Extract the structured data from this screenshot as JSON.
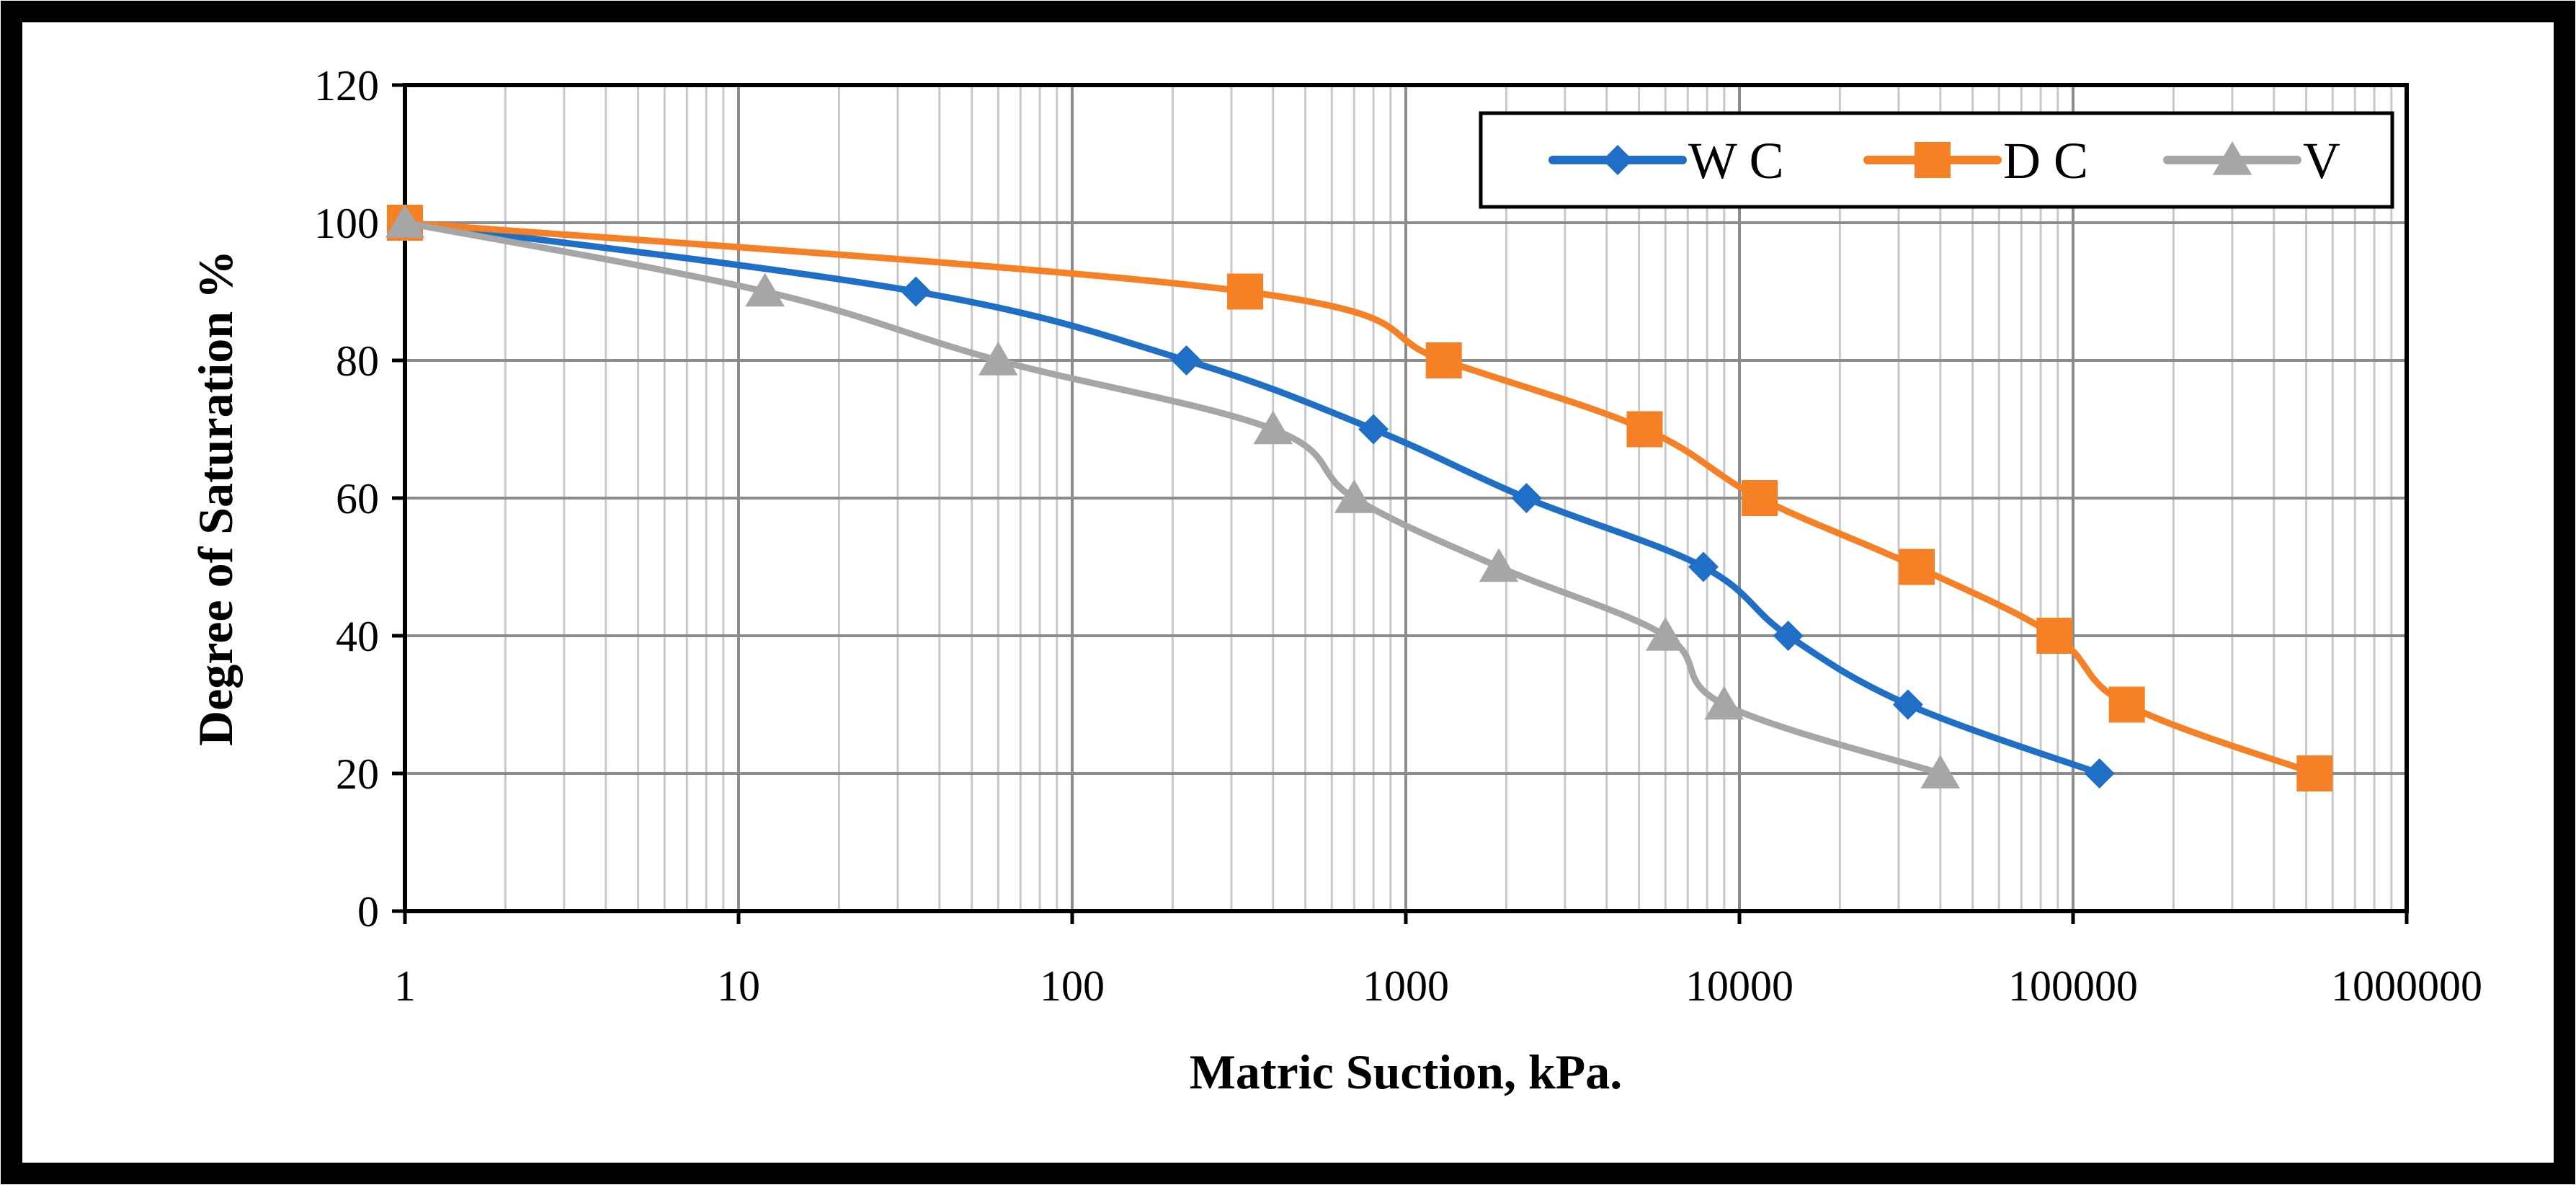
{
  "chart_data": {
    "type": "line",
    "x_scale": "log",
    "xlabel": "Matric Suction, kPa.",
    "ylabel": "Degree of Saturation %",
    "xlim": [
      1,
      1000000
    ],
    "ylim": [
      0,
      120
    ],
    "x_ticks": [
      1,
      10,
      100,
      1000,
      10000,
      100000,
      1000000
    ],
    "x_tick_labels": [
      "1",
      "10",
      "100",
      "1000",
      "10000",
      "100000",
      "1000000"
    ],
    "y_ticks": [
      0,
      20,
      40,
      60,
      80,
      100,
      120
    ],
    "y_tick_labels": [
      "0",
      "20",
      "40",
      "60",
      "80",
      "100",
      "120"
    ],
    "grid": true,
    "legend_position": "top-right",
    "series": [
      {
        "name": "W C",
        "color": "#1f6fc6",
        "marker": "diamond",
        "x": [
          1,
          34,
          220,
          800,
          2300,
          7800,
          14000,
          32000,
          120000
        ],
        "y": [
          100,
          90,
          80,
          70,
          60,
          50,
          40,
          30,
          20
        ]
      },
      {
        "name": "D C",
        "color": "#f58025",
        "marker": "square",
        "x": [
          1,
          330,
          1300,
          5200,
          11500,
          34000,
          88000,
          145000,
          530000
        ],
        "y": [
          100,
          90,
          80,
          70,
          60,
          50,
          40,
          30,
          20
        ]
      },
      {
        "name": "V",
        "color": "#a6a6a6",
        "marker": "triangle",
        "x": [
          1,
          12,
          60,
          400,
          700,
          1900,
          6000,
          9000,
          40000
        ],
        "y": [
          100,
          90,
          80,
          70,
          60,
          50,
          40,
          30,
          20
        ]
      }
    ]
  }
}
